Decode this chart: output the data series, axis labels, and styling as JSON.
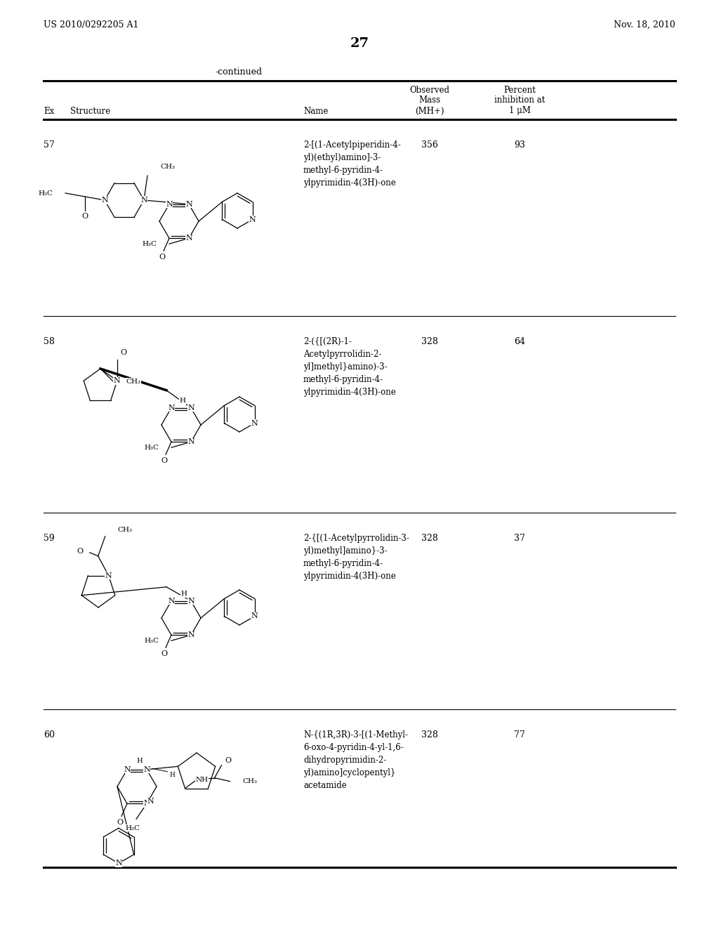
{
  "background_color": "#ffffff",
  "header_left": "US 2010/0292205 A1",
  "header_right": "Nov. 18, 2010",
  "page_number": "27",
  "continued_label": "-continued",
  "rows": [
    {
      "ex": "57",
      "name": "2-[(1-Acetylpiperidin-4-\nyl)(ethyl)amino]-3-\nmethyl-6-pyridin-4-\nylpyrimidin-4(3H)-one",
      "mass": "356",
      "inhibition": "93"
    },
    {
      "ex": "58",
      "name": "2-({[(2R)-1-\nAcetylpyrrolidin-2-\nyl]methyl}amino)-3-\nmethyl-6-pyridin-4-\nylpyrimidin-4(3H)-one",
      "mass": "328",
      "inhibition": "64"
    },
    {
      "ex": "59",
      "name": "2-{[(1-Acetylpyrrolidin-3-\nyl)methyl]amino}-3-\nmethyl-6-pyridin-4-\nylpyrimidin-4(3H)-one",
      "mass": "328",
      "inhibition": "37"
    },
    {
      "ex": "60",
      "name": "N-{(1R,3R)-3-[(1-Methyl-\n6-oxo-4-pyridin-4-yl-1,6-\ndihydropyrimidin-2-\nyl)amino]cyclopentyl}\nacetamide",
      "mass": "328",
      "inhibition": "77"
    }
  ]
}
